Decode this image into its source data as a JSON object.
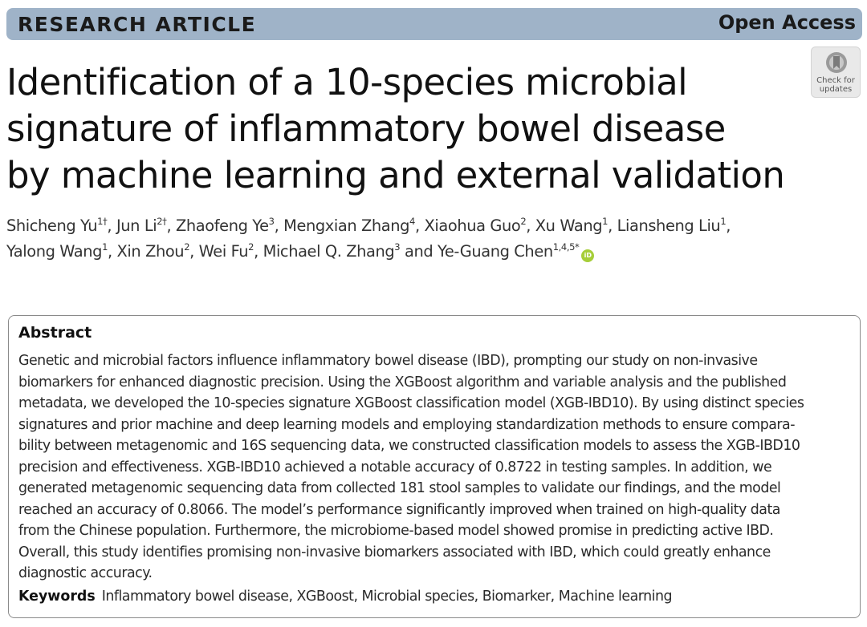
{
  "header": {
    "article_type": "RESEARCH ARTICLE",
    "access": "Open Access",
    "color": "#9fb3c8"
  },
  "crossmark": {
    "icon": "crossmark-bookmark-icon",
    "label_line1": "Check for",
    "label_line2": "updates"
  },
  "title": {
    "lines": [
      "Identification of a 10-species microbial",
      "signature of inflammatory bowel disease",
      "by machine learning and external validation"
    ]
  },
  "authors": {
    "line1": [
      {
        "name": "Shicheng Yu",
        "aff": "1†",
        "sep": ", "
      },
      {
        "name": "Jun Li",
        "aff": "2†",
        "sep": ", "
      },
      {
        "name": "Zhaofeng Ye",
        "aff": "3",
        "sep": ", "
      },
      {
        "name": "Mengxian Zhang",
        "aff": "4",
        "sep": ", "
      },
      {
        "name": "Xiaohua Guo",
        "aff": "2",
        "sep": ", "
      },
      {
        "name": "Xu Wang",
        "aff": "1",
        "sep": ", "
      },
      {
        "name": "Liansheng Liu",
        "aff": "1",
        "sep": ","
      }
    ],
    "line2": [
      {
        "name": "Yalong Wang",
        "aff": "1",
        "sep": ", "
      },
      {
        "name": "Xin Zhou",
        "aff": "2",
        "sep": ", "
      },
      {
        "name": "Wei Fu",
        "aff": "2",
        "sep": ", "
      },
      {
        "name": "Michael Q. Zhang",
        "aff": "3",
        "sep": " and "
      },
      {
        "name": "Ye-Guang Chen",
        "aff": "1,4,5*",
        "sep": ""
      }
    ],
    "orcid_icon": "orcid-icon",
    "orcid_color": "#a6ce39"
  },
  "abstract": {
    "heading": "Abstract",
    "lines": [
      "Genetic and microbial factors influence inflammatory bowel disease (IBD), prompting our study on non-invasive",
      "biomarkers for enhanced diagnostic precision. Using the XGBoost algorithm and variable analysis and the published",
      "metadata, we developed the 10-species signature XGBoost classification model (XGB-IBD10). By using distinct species",
      "signatures and prior machine and deep learning models and employing standardization methods to ensure compara-",
      "bility between metagenomic and 16S sequencing data, we constructed classification models to assess the XGB-IBD10",
      "precision and effectiveness. XGB-IBD10 achieved a notable accuracy of 0.8722 in testing samples. In addition, we",
      "generated metagenomic sequencing data from collected 181 stool samples to validate our findings, and the model",
      "reached an accuracy of 0.8066. The model’s performance significantly improved when trained on high-quality data",
      "from the Chinese population. Furthermore, the microbiome-based model showed promise in predicting active IBD.",
      "Overall, this study identifies promising non-invasive biomarkers associated with IBD, which could greatly enhance",
      "diagnostic accuracy."
    ],
    "keywords_label": "Keywords",
    "keywords": "Inflammatory bowel disease, XGBoost, Microbial species, Biomarker, Machine learning"
  }
}
